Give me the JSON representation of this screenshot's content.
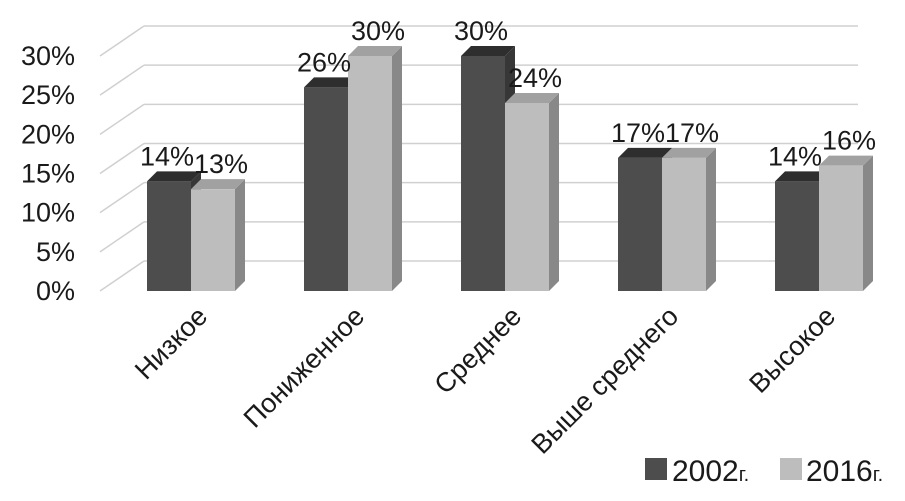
{
  "chart_data": {
    "type": "bar",
    "categories": [
      "Низкое",
      "Пониженное",
      "Среднее",
      "Выше среднего",
      "Высокое"
    ],
    "series": [
      {
        "name": "2002г.",
        "values": [
          14,
          26,
          30,
          17,
          14
        ],
        "labels": [
          "14%",
          "26%",
          "30%",
          "17%",
          "14%"
        ],
        "color": "#4d4d4d"
      },
      {
        "name": "2016г.",
        "values": [
          13,
          30,
          24,
          17,
          16
        ],
        "labels": [
          "13%",
          "30%",
          "24%",
          "17%",
          "16%"
        ],
        "color": "#bdbdbd"
      }
    ],
    "y_ticks": [
      "0%",
      "5%",
      "10%",
      "15%",
      "20%",
      "25%",
      "30%"
    ],
    "ylim": [
      0,
      30
    ],
    "grid": true,
    "three_d": true,
    "legend_position": "bottom-right"
  },
  "legend": {
    "items": [
      {
        "year": "2002",
        "suffix": "г.",
        "color": "#4d4d4d"
      },
      {
        "year": "2016",
        "suffix": "г.",
        "color": "#bdbdbd"
      }
    ]
  }
}
